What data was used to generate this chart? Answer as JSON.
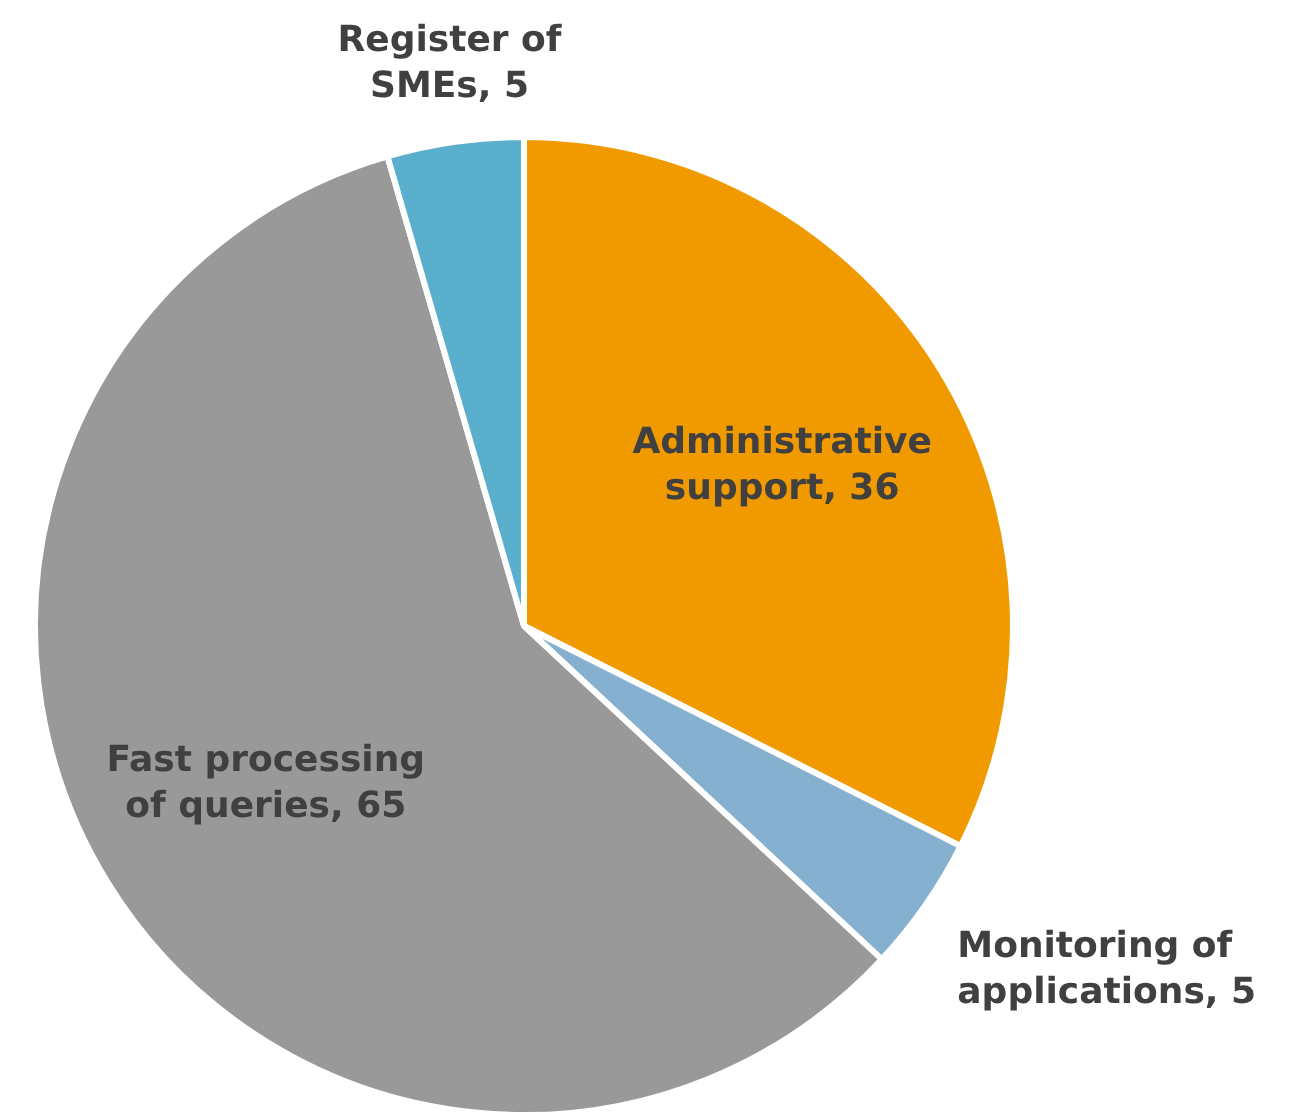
{
  "chart_data": {
    "type": "pie",
    "categories": [
      "Administrative support, 36",
      "Monitoring of applications, 5",
      "Fast processing of queries, 65",
      "Register of SMEs, 5"
    ],
    "values": [
      36,
      5,
      65,
      5
    ],
    "colors": [
      "#f09a00",
      "#86b0cf",
      "#999999",
      "#5aafcd"
    ],
    "legend": false
  }
}
